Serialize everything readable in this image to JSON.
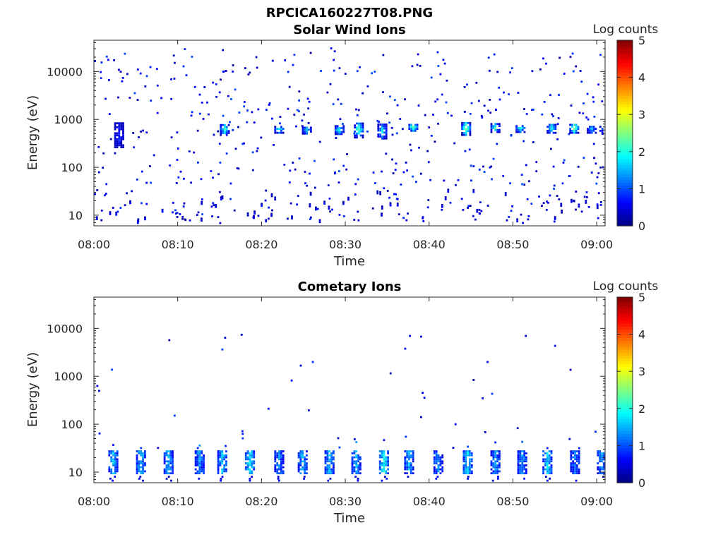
{
  "figure": {
    "title": "RPCICA160227T08.PNG"
  },
  "colorbar": {
    "label": "Log counts",
    "range": [
      0,
      5
    ],
    "ticks": [
      "0",
      "1",
      "2",
      "3",
      "4",
      "5"
    ],
    "colormap": "jet"
  },
  "chart_data": [
    {
      "type": "heatmap",
      "title": "Solar Wind Ions",
      "xlabel": "Time",
      "ylabel": "Energy (eV)",
      "yscale": "log",
      "xlim": [
        "08:00",
        "09:01"
      ],
      "ylim": [
        6,
        45000
      ],
      "xticks": [
        "08:00",
        "08:10",
        "08:20",
        "08:30",
        "08:40",
        "08:50",
        "09:00"
      ],
      "yticks": [
        "10",
        "100",
        "1000",
        "10000"
      ],
      "color_label": "Log counts",
      "features": [
        {
          "desc": "recurring energy band",
          "energy_eV": [
            450,
            800
          ],
          "log_counts": [
            1,
            3.2
          ]
        },
        {
          "desc": "sparse counts",
          "energy_eV": [
            6,
            30000
          ],
          "log_counts": [
            0.3,
            1
          ]
        },
        {
          "desc": "low-energy band",
          "energy_eV": [
            6,
            30
          ],
          "log_counts": [
            0.2,
            0.7
          ]
        }
      ],
      "enhancements": [
        {
          "time": "08:02.9",
          "energy_eV": [
            250,
            800
          ],
          "log_counts": 0.8
        },
        {
          "time": "08:15.5",
          "energy_eV": [
            450,
            800
          ],
          "log_counts": 2.2
        },
        {
          "time": "08:22.0",
          "energy_eV": [
            500,
            700
          ],
          "log_counts": 2.0
        },
        {
          "time": "08:25.3",
          "energy_eV": [
            480,
            680
          ],
          "log_counts": 1.8
        },
        {
          "time": "08:29.2",
          "energy_eV": [
            470,
            700
          ],
          "log_counts": 2.1
        },
        {
          "time": "08:31.5",
          "energy_eV": [
            400,
            850
          ],
          "log_counts": 2.4
        },
        {
          "time": "08:34.3",
          "energy_eV": [
            380,
            750
          ],
          "log_counts": 1.9
        },
        {
          "time": "08:38.0",
          "energy_eV": [
            550,
            800
          ],
          "log_counts": 2.6
        },
        {
          "time": "08:44.3",
          "energy_eV": [
            450,
            850
          ],
          "log_counts": 2.7
        },
        {
          "time": "08:47.8",
          "energy_eV": [
            520,
            780
          ],
          "log_counts": 2.3
        },
        {
          "time": "08:50.8",
          "energy_eV": [
            520,
            760
          ],
          "log_counts": 2.0
        },
        {
          "time": "08:54.5",
          "energy_eV": [
            500,
            780
          ],
          "log_counts": 2.1
        },
        {
          "time": "08:57.2",
          "energy_eV": [
            500,
            800
          ],
          "log_counts": 2.8
        },
        {
          "time": "08:59.3",
          "energy_eV": [
            500,
            700
          ],
          "log_counts": 1.6
        },
        {
          "time": "09:00.8",
          "energy_eV": [
            500,
            700
          ],
          "log_counts": 1.5
        }
      ]
    },
    {
      "type": "heatmap",
      "title": "Cometary Ions",
      "xlabel": "Time",
      "ylabel": "Energy (eV)",
      "yscale": "log",
      "xlim": [
        "08:00",
        "09:01"
      ],
      "ylim": [
        6,
        45000
      ],
      "xticks": [
        "08:00",
        "08:10",
        "08:20",
        "08:30",
        "08:40",
        "08:50",
        "09:00"
      ],
      "yticks": [
        "10",
        "100",
        "1000",
        "10000"
      ],
      "color_label": "Log counts",
      "features": [
        {
          "desc": "periodic low-energy bursts",
          "energy_eV": [
            6,
            28
          ],
          "log_counts": [
            0.3,
            2.0
          ]
        },
        {
          "desc": "sparse counts",
          "energy_eV": [
            30,
            8000
          ],
          "log_counts": [
            0.2,
            1
          ]
        }
      ],
      "bursts": [
        {
          "time": "08:02.2",
          "log_counts": 1.5
        },
        {
          "time": "08:05.5",
          "log_counts": 1.6
        },
        {
          "time": "08:08.8",
          "log_counts": 1.4
        },
        {
          "time": "08:12.5",
          "log_counts": 1.3
        },
        {
          "time": "08:15.2",
          "log_counts": 1.6
        },
        {
          "time": "08:18.5",
          "log_counts": 1.7
        },
        {
          "time": "08:22.0",
          "log_counts": 1.2
        },
        {
          "time": "08:24.8",
          "log_counts": 1.4
        },
        {
          "time": "08:28.0",
          "log_counts": 1.5
        },
        {
          "time": "08:31.2",
          "log_counts": 1.4
        },
        {
          "time": "08:34.5",
          "log_counts": 1.9
        },
        {
          "time": "08:37.5",
          "log_counts": 1.4
        },
        {
          "time": "08:41.0",
          "log_counts": 1.2
        },
        {
          "time": "08:44.5",
          "log_counts": 1.7
        },
        {
          "time": "08:47.8",
          "log_counts": 1.3
        },
        {
          "time": "08:51.0",
          "log_counts": 1.3
        },
        {
          "time": "08:54.0",
          "log_counts": 1.6
        },
        {
          "time": "08:57.3",
          "log_counts": 1.2
        },
        {
          "time": "09:00.5",
          "log_counts": 1.3
        }
      ]
    }
  ]
}
